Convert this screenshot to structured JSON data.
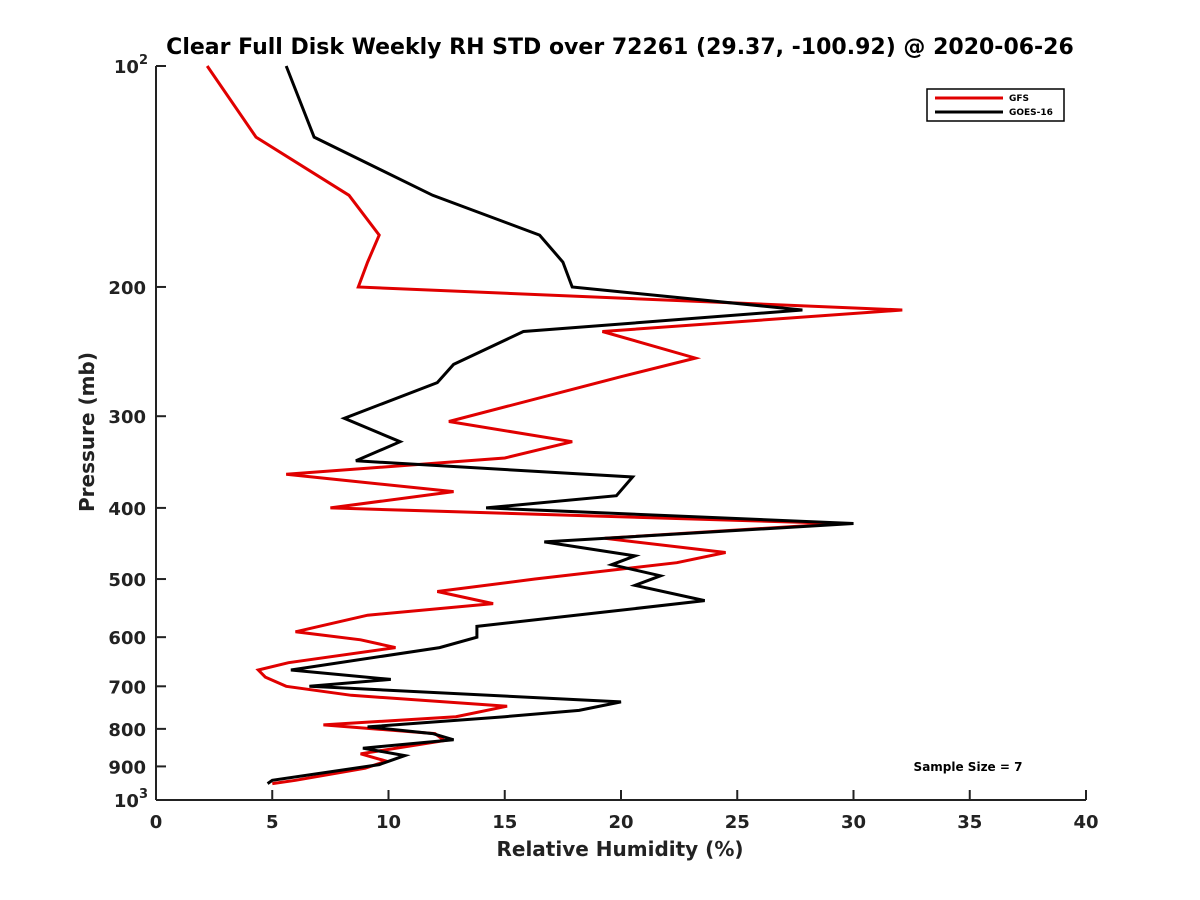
{
  "chart_data": {
    "type": "line",
    "title": "Clear Full Disk Weekly RH STD over 72261 (29.37, -100.92) @ 2020-06-26",
    "xlabel": "Relative Humidity (%)",
    "ylabel": "Pressure (mb)",
    "xlim": [
      0,
      40
    ],
    "ylim": [
      100,
      1000
    ],
    "y_scale": "log",
    "y_reversed": true,
    "x_ticks": [
      "0",
      "5",
      "10",
      "15",
      "20",
      "25",
      "30",
      "35",
      "40"
    ],
    "y_ticks": [
      {
        "value": 100,
        "label": "10",
        "sup": "2"
      },
      {
        "value": 200,
        "label": "200"
      },
      {
        "value": 300,
        "label": "300"
      },
      {
        "value": 400,
        "label": "400"
      },
      {
        "value": 500,
        "label": "500"
      },
      {
        "value": 600,
        "label": "600"
      },
      {
        "value": 700,
        "label": "700"
      },
      {
        "value": 800,
        "label": "800"
      },
      {
        "value": 900,
        "label": "900"
      },
      {
        "value": 1000,
        "label": "10",
        "sup": "3"
      }
    ],
    "grid": false,
    "legend_position": "top-right",
    "annotation": "Sample Size = 7",
    "series": [
      {
        "name": "GFS",
        "color": "#e00000",
        "points": [
          [
            2.2,
            100
          ],
          [
            4.3,
            125
          ],
          [
            8.3,
            150
          ],
          [
            9.6,
            170
          ],
          [
            9.1,
            185
          ],
          [
            8.7,
            200
          ],
          [
            32.1,
            215
          ],
          [
            19.2,
            230
          ],
          [
            23.2,
            250
          ],
          [
            20.0,
            265
          ],
          [
            12.6,
            305
          ],
          [
            17.9,
            325
          ],
          [
            15.0,
            342
          ],
          [
            5.6,
            360
          ],
          [
            12.8,
            380
          ],
          [
            7.5,
            400
          ],
          [
            29.5,
            420
          ],
          [
            19.3,
            440
          ],
          [
            24.5,
            460
          ],
          [
            22.4,
            475
          ],
          [
            16.3,
            500
          ],
          [
            12.1,
            520
          ],
          [
            14.5,
            540
          ],
          [
            9.1,
            560
          ],
          [
            6.0,
            590
          ],
          [
            8.8,
            605
          ],
          [
            10.3,
            620
          ],
          [
            5.7,
            650
          ],
          [
            4.4,
            665
          ],
          [
            4.7,
            680
          ],
          [
            5.6,
            700
          ],
          [
            8.4,
            720
          ],
          [
            15.1,
            745
          ],
          [
            12.9,
            770
          ],
          [
            7.2,
            790
          ],
          [
            12.0,
            812
          ],
          [
            12.4,
            830
          ],
          [
            8.8,
            865
          ],
          [
            9.9,
            885
          ],
          [
            9.0,
            905
          ],
          [
            6.0,
            940
          ],
          [
            5.0,
            950
          ]
        ]
      },
      {
        "name": "GOES-16",
        "color": "#000000",
        "points": [
          [
            5.6,
            100
          ],
          [
            6.8,
            125
          ],
          [
            11.9,
            150
          ],
          [
            16.5,
            170
          ],
          [
            17.5,
            185
          ],
          [
            17.9,
            200
          ],
          [
            27.8,
            215
          ],
          [
            15.8,
            230
          ],
          [
            12.8,
            255
          ],
          [
            12.1,
            270
          ],
          [
            8.1,
            302
          ],
          [
            10.5,
            325
          ],
          [
            8.6,
            345
          ],
          [
            20.5,
            363
          ],
          [
            19.8,
            385
          ],
          [
            14.2,
            400
          ],
          [
            30.0,
            420
          ],
          [
            16.7,
            445
          ],
          [
            20.6,
            465
          ],
          [
            19.6,
            478
          ],
          [
            21.7,
            495
          ],
          [
            20.6,
            510
          ],
          [
            23.6,
            535
          ],
          [
            19.2,
            555
          ],
          [
            13.8,
            580
          ],
          [
            13.8,
            600
          ],
          [
            12.2,
            620
          ],
          [
            5.8,
            665
          ],
          [
            10.1,
            685
          ],
          [
            6.6,
            700
          ],
          [
            20.0,
            735
          ],
          [
            18.2,
            755
          ],
          [
            15.0,
            770
          ],
          [
            9.1,
            795
          ],
          [
            11.9,
            812
          ],
          [
            12.8,
            828
          ],
          [
            8.9,
            850
          ],
          [
            10.7,
            870
          ],
          [
            9.6,
            895
          ],
          [
            5.0,
            940
          ],
          [
            4.8,
            950
          ]
        ]
      }
    ]
  }
}
